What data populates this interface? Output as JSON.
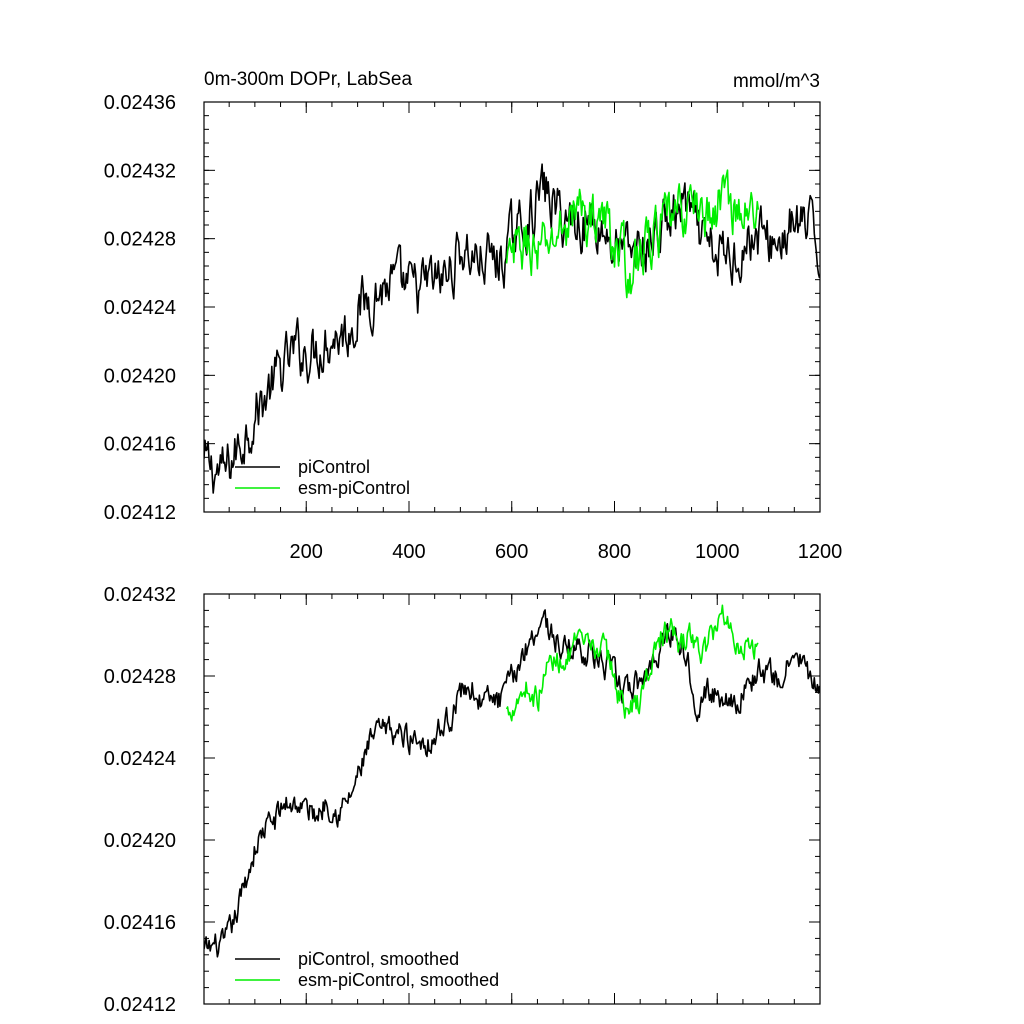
{
  "chart_data": [
    {
      "type": "line",
      "title": "0m-300m DOPr, LabSea",
      "units": "mmol/m^3",
      "xlim": [
        1,
        1200
      ],
      "ylim": [
        0.02412,
        0.02436
      ],
      "x_ticks": [
        200,
        400,
        600,
        800,
        1000,
        1200
      ],
      "x_tick_labels": [
        "200",
        "400",
        "600",
        "800",
        "1000",
        "1200"
      ],
      "y_ticks": [
        0.02412,
        0.02416,
        0.0242,
        0.02424,
        0.02428,
        0.02432,
        0.02436
      ],
      "y_tick_labels": [
        "0.02412",
        "0.02416",
        "0.02420",
        "0.02424",
        "0.02428",
        "0.02432",
        "0.02436"
      ],
      "grid": false,
      "legend_position": "bottom-left",
      "series": [
        {
          "name": "piControl",
          "color": "#000000",
          "noise": 1.3e-05,
          "x": [
            1,
            20,
            40,
            60,
            80,
            100,
            120,
            140,
            160,
            180,
            200,
            220,
            240,
            260,
            280,
            300,
            320,
            340,
            360,
            380,
            400,
            420,
            440,
            460,
            480,
            500,
            520,
            540,
            560,
            580,
            600,
            620,
            640,
            660,
            680,
            700,
            720,
            740,
            760,
            780,
            800,
            820,
            840,
            860,
            880,
            900,
            920,
            940,
            960,
            980,
            1000,
            1020,
            1040,
            1060,
            1080,
            1100,
            1120,
            1140,
            1160,
            1180,
            1200
          ],
          "y": [
            0.024148,
            0.024145,
            0.024142,
            0.024153,
            0.024165,
            0.024178,
            0.024187,
            0.024198,
            0.024206,
            0.024215,
            0.024214,
            0.024215,
            0.024222,
            0.024224,
            0.024225,
            0.024238,
            0.024245,
            0.024249,
            0.024253,
            0.024253,
            0.02425,
            0.02425,
            0.024255,
            0.024255,
            0.02426,
            0.024275,
            0.02427,
            0.024268,
            0.024268,
            0.024266,
            0.02428,
            0.024288,
            0.024295,
            0.02431,
            0.0243,
            0.024292,
            0.024292,
            0.02429,
            0.02429,
            0.024285,
            0.024275,
            0.024272,
            0.024272,
            0.024275,
            0.024282,
            0.02429,
            0.024295,
            0.0243,
            0.024284,
            0.024272,
            0.02427,
            0.02427,
            0.024272,
            0.024278,
            0.024283,
            0.024278,
            0.024278,
            0.024285,
            0.024288,
            0.024285,
            0.02427
          ]
        },
        {
          "name": "esm-piControl",
          "color": "#00ee00",
          "noise": 1.3e-05,
          "x": [
            590,
            610,
            630,
            650,
            670,
            690,
            710,
            730,
            750,
            770,
            790,
            810,
            830,
            850,
            870,
            890,
            910,
            930,
            950,
            970,
            990,
            1010,
            1030,
            1050,
            1070,
            1080
          ],
          "y": [
            0.024262,
            0.024272,
            0.024278,
            0.02427,
            0.024276,
            0.024283,
            0.02429,
            0.024298,
            0.02429,
            0.024295,
            0.024285,
            0.024272,
            0.02426,
            0.02427,
            0.02428,
            0.024285,
            0.02429,
            0.024295,
            0.0243,
            0.024298,
            0.02429,
            0.024308,
            0.0243,
            0.024295,
            0.024294,
            0.024295
          ]
        }
      ]
    },
    {
      "type": "line",
      "xlim": [
        1,
        1200
      ],
      "ylim": [
        0.02412,
        0.02432
      ],
      "x_ticks": [
        200,
        400,
        600,
        800,
        1000,
        1200
      ],
      "y_ticks": [
        0.02412,
        0.02416,
        0.0242,
        0.02424,
        0.02428,
        0.02432
      ],
      "y_tick_labels": [
        "0.02412",
        "0.02416",
        "0.02420",
        "0.02424",
        "0.02428",
        "0.02432"
      ],
      "grid": false,
      "legend_position": "bottom-left",
      "series": [
        {
          "name": "piControl, smoothed",
          "color": "#000000",
          "noise": 5.5e-06,
          "x": [
            1,
            20,
            40,
            60,
            80,
            100,
            120,
            140,
            160,
            180,
            200,
            220,
            240,
            260,
            280,
            300,
            320,
            340,
            360,
            380,
            400,
            420,
            440,
            460,
            480,
            500,
            520,
            540,
            560,
            580,
            600,
            620,
            640,
            660,
            680,
            700,
            720,
            740,
            760,
            780,
            800,
            820,
            840,
            860,
            880,
            900,
            920,
            940,
            960,
            980,
            1000,
            1020,
            1040,
            1060,
            1080,
            1100,
            1120,
            1140,
            1160,
            1180,
            1200
          ],
          "y": [
            0.024145,
            0.024148,
            0.024148,
            0.02416,
            0.024178,
            0.024196,
            0.024206,
            0.02421,
            0.024218,
            0.024218,
            0.024215,
            0.024212,
            0.02422,
            0.024214,
            0.024218,
            0.02423,
            0.024245,
            0.024252,
            0.024253,
            0.024252,
            0.02425,
            0.02425,
            0.024248,
            0.024254,
            0.02426,
            0.024272,
            0.024275,
            0.024268,
            0.024268,
            0.024268,
            0.024278,
            0.02429,
            0.0243,
            0.024309,
            0.0243,
            0.024292,
            0.024295,
            0.024293,
            0.02429,
            0.024285,
            0.02428,
            0.024272,
            0.024275,
            0.02428,
            0.02429,
            0.0243,
            0.024302,
            0.02429,
            0.024268,
            0.024272,
            0.02427,
            0.02427,
            0.024268,
            0.024275,
            0.024283,
            0.02428,
            0.024278,
            0.024285,
            0.02429,
            0.024278,
            0.02427
          ]
        },
        {
          "name": "esm-piControl, smoothed",
          "color": "#00ee00",
          "noise": 5.5e-06,
          "x": [
            590,
            610,
            630,
            650,
            670,
            690,
            710,
            730,
            750,
            770,
            790,
            810,
            830,
            850,
            870,
            890,
            910,
            930,
            950,
            970,
            990,
            1010,
            1030,
            1050,
            1070,
            1080
          ],
          "y": [
            0.024262,
            0.02427,
            0.024275,
            0.024268,
            0.024285,
            0.024288,
            0.02429,
            0.024295,
            0.024292,
            0.024295,
            0.024288,
            0.02427,
            0.024262,
            0.024268,
            0.024285,
            0.0243,
            0.0243,
            0.024295,
            0.0243,
            0.02429,
            0.0243,
            0.024313,
            0.0243,
            0.024295,
            0.024295,
            0.024295
          ]
        }
      ]
    }
  ]
}
